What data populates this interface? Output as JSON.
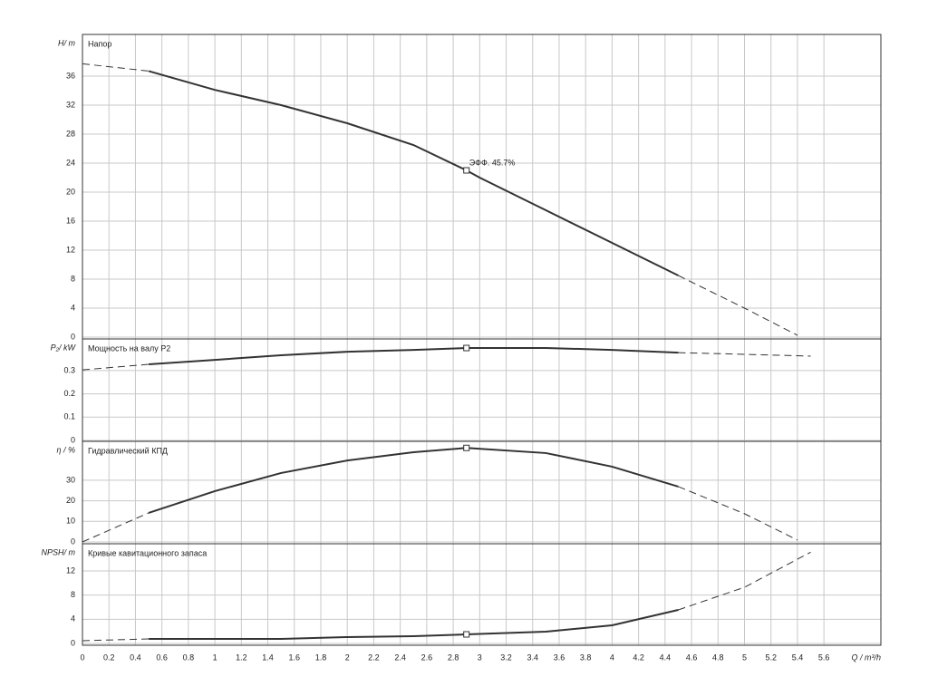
{
  "chart_data": [
    {
      "type": "line",
      "y_label": "H/ m",
      "title": "Напор",
      "x": [
        0,
        0.5,
        1,
        1.5,
        2,
        2.5,
        2.9,
        3,
        3.5,
        4,
        4.5,
        5,
        5.4
      ],
      "series": [
        {
          "style": "dashed",
          "values": [
            37.7,
            36.7,
            null,
            null,
            null,
            null,
            null,
            null,
            null,
            null,
            8.5,
            4,
            0.25
          ]
        },
        {
          "style": "solid",
          "values": [
            null,
            36.7,
            34.1,
            32,
            29.5,
            26.5,
            23,
            22,
            17.5,
            13,
            8.5,
            null,
            null
          ]
        }
      ],
      "marker_x": 2.9,
      "annotation": "ЭФФ. 45.7%",
      "ylim": [
        -0.25,
        41.75
      ],
      "yticks": [
        0,
        4,
        8,
        12,
        16,
        20,
        24,
        28,
        32,
        36
      ]
    },
    {
      "type": "line",
      "y_label": "P₂/ kW",
      "title": "Мощность на валу P2",
      "x": [
        0,
        0.5,
        1,
        1.5,
        2,
        2.5,
        2.9,
        3.5,
        4,
        4.5,
        5,
        5.5
      ],
      "series": [
        {
          "style": "dashed",
          "values": [
            0.303,
            0.327,
            null,
            null,
            null,
            null,
            null,
            null,
            null,
            0.377,
            0.37,
            0.362
          ]
        },
        {
          "style": "solid",
          "values": [
            null,
            0.327,
            0.346,
            0.366,
            0.381,
            0.389,
            0.397,
            0.397,
            0.389,
            0.377,
            null,
            null
          ]
        }
      ],
      "marker_x": 2.9,
      "ylim": [
        -0.004,
        0.436
      ],
      "yticks": [
        0,
        0.1,
        0.2,
        0.3
      ]
    },
    {
      "type": "line",
      "y_label": "η / %",
      "title": "Гидравлический КПД",
      "x": [
        0,
        0.5,
        1,
        1.5,
        2,
        2.5,
        2.9,
        3.5,
        4,
        4.5,
        5,
        5.4
      ],
      "series": [
        {
          "style": "dashed",
          "values": [
            0,
            14.1,
            null,
            null,
            null,
            null,
            null,
            null,
            null,
            26.9,
            13.7,
            0.9
          ]
        },
        {
          "style": "solid",
          "values": [
            null,
            14.1,
            24.7,
            33.5,
            39.6,
            43.6,
            45.7,
            43.2,
            36.6,
            26.9,
            null,
            null
          ]
        }
      ],
      "marker_x": 2.9,
      "ylim": [
        -0.9,
        48.9
      ],
      "yticks": [
        0,
        10,
        20,
        30
      ]
    },
    {
      "type": "line",
      "y_label": "NPSH/ m",
      "title": "Кривые кавитационного запаса",
      "x": [
        0,
        0.5,
        1,
        1.5,
        2,
        2.5,
        2.9,
        3.5,
        4,
        4.5,
        5,
        5.5
      ],
      "series": [
        {
          "style": "dashed",
          "values": [
            0.45,
            0.75,
            null,
            null,
            null,
            null,
            null,
            null,
            null,
            5.55,
            9.3,
            15.1
          ]
        },
        {
          "style": "solid",
          "values": [
            null,
            0.75,
            0.75,
            0.75,
            1.05,
            1.2,
            1.5,
            1.95,
            3,
            5.55,
            null,
            null
          ]
        }
      ],
      "marker_x": 2.9,
      "ylim": [
        -0.3,
        16.5
      ],
      "yticks": [
        0,
        4,
        8,
        12
      ],
      "x_label": "Q / m³/h",
      "xlim": [
        0,
        6.03
      ],
      "xticks": [
        0,
        0.2,
        0.4,
        0.6,
        0.8,
        1,
        1.2,
        1.4,
        1.6,
        1.8,
        2,
        2.2,
        2.4,
        2.6,
        2.8,
        3,
        3.2,
        3.4,
        3.6,
        3.8,
        4,
        4.2,
        4.4,
        4.6,
        4.8,
        5,
        5.2,
        5.4,
        5.6
      ]
    }
  ]
}
